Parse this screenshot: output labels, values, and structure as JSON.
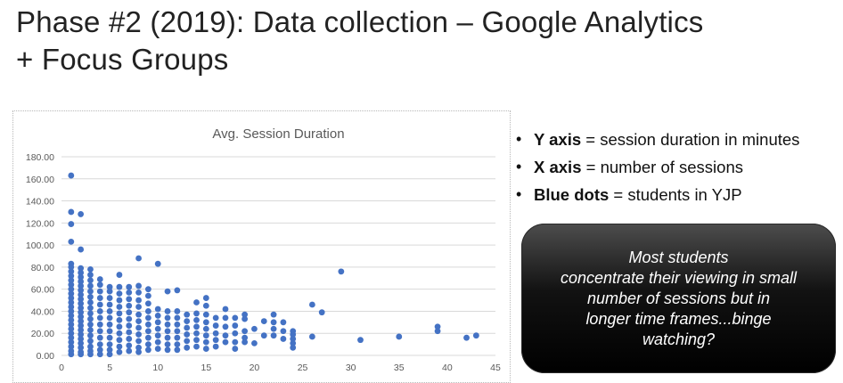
{
  "slide": {
    "title_line1": "Phase #2 (2019): Data collection – Google Analytics",
    "title_line2": "+ Focus Groups"
  },
  "bullets": [
    {
      "bold": "Y axis",
      "text": " = session duration in minutes"
    },
    {
      "bold": "X axis",
      "text": " = number of sessions"
    },
    {
      "bold": "Blue dots",
      "text": " = students in YJP"
    }
  ],
  "callout": {
    "text": "Most students\nconcentrate their viewing in small\nnumber of sessions but in\nlonger time frames...binge\nwatching?"
  },
  "colors": {
    "dot": "#4472C4",
    "grid": "#d9d9d9",
    "axis_text": "#595959",
    "title_text": "#595959"
  },
  "chart_data": {
    "type": "scatter",
    "title": "Avg. Session Duration",
    "xlabel": "",
    "ylabel": "",
    "xlim": [
      0,
      45
    ],
    "ylim": [
      0,
      180
    ],
    "x_ticks": [
      0,
      5,
      10,
      15,
      20,
      25,
      30,
      35,
      40,
      45
    ],
    "y_ticks": [
      0,
      20,
      40,
      60,
      80,
      100,
      120,
      140,
      160,
      180
    ],
    "y_tick_labels": [
      "0.00",
      "20.00",
      "40.00",
      "60.00",
      "80.00",
      "100.00",
      "120.00",
      "140.00",
      "160.00",
      "180.00"
    ],
    "x_tick_labels": [
      "0",
      "5",
      "10",
      "15",
      "20",
      "25",
      "30",
      "35",
      "40",
      "45"
    ],
    "grid": "horizontal",
    "legend": "none",
    "series": [
      {
        "name": "Students in YJP",
        "points": [
          [
            1,
            163
          ],
          [
            1,
            130
          ],
          [
            1,
            119
          ],
          [
            1,
            103
          ],
          [
            1,
            83
          ],
          [
            1,
            80
          ],
          [
            1,
            76
          ],
          [
            1,
            72
          ],
          [
            1,
            68
          ],
          [
            1,
            64
          ],
          [
            1,
            60
          ],
          [
            1,
            56
          ],
          [
            1,
            52
          ],
          [
            1,
            48
          ],
          [
            1,
            44
          ],
          [
            1,
            40
          ],
          [
            1,
            36
          ],
          [
            1,
            32
          ],
          [
            1,
            28
          ],
          [
            1,
            24
          ],
          [
            1,
            20
          ],
          [
            1,
            16
          ],
          [
            1,
            12
          ],
          [
            1,
            8
          ],
          [
            1,
            4
          ],
          [
            1,
            1
          ],
          [
            2,
            128
          ],
          [
            2,
            96
          ],
          [
            2,
            79
          ],
          [
            2,
            75
          ],
          [
            2,
            71
          ],
          [
            2,
            67
          ],
          [
            2,
            63
          ],
          [
            2,
            59
          ],
          [
            2,
            55
          ],
          [
            2,
            51
          ],
          [
            2,
            47
          ],
          [
            2,
            43
          ],
          [
            2,
            39
          ],
          [
            2,
            35
          ],
          [
            2,
            31
          ],
          [
            2,
            27
          ],
          [
            2,
            23
          ],
          [
            2,
            19
          ],
          [
            2,
            15
          ],
          [
            2,
            11
          ],
          [
            2,
            7
          ],
          [
            2,
            3
          ],
          [
            2,
            1
          ],
          [
            3,
            78
          ],
          [
            3,
            73
          ],
          [
            3,
            68
          ],
          [
            3,
            63
          ],
          [
            3,
            58
          ],
          [
            3,
            53
          ],
          [
            3,
            48
          ],
          [
            3,
            43
          ],
          [
            3,
            38
          ],
          [
            3,
            33
          ],
          [
            3,
            28
          ],
          [
            3,
            23
          ],
          [
            3,
            18
          ],
          [
            3,
            13
          ],
          [
            3,
            8
          ],
          [
            3,
            4
          ],
          [
            3,
            1
          ],
          [
            4,
            69
          ],
          [
            4,
            64
          ],
          [
            4,
            58
          ],
          [
            4,
            52
          ],
          [
            4,
            46
          ],
          [
            4,
            40
          ],
          [
            4,
            34
          ],
          [
            4,
            28
          ],
          [
            4,
            22
          ],
          [
            4,
            16
          ],
          [
            4,
            10
          ],
          [
            4,
            5
          ],
          [
            4,
            1
          ],
          [
            5,
            62
          ],
          [
            5,
            58
          ],
          [
            5,
            52
          ],
          [
            5,
            46
          ],
          [
            5,
            40
          ],
          [
            5,
            34
          ],
          [
            5,
            28
          ],
          [
            5,
            22
          ],
          [
            5,
            16
          ],
          [
            5,
            10
          ],
          [
            5,
            5
          ],
          [
            5,
            1
          ],
          [
            6,
            73
          ],
          [
            6,
            62
          ],
          [
            6,
            56
          ],
          [
            6,
            50
          ],
          [
            6,
            44
          ],
          [
            6,
            38
          ],
          [
            6,
            32
          ],
          [
            6,
            26
          ],
          [
            6,
            20
          ],
          [
            6,
            14
          ],
          [
            6,
            8
          ],
          [
            6,
            3
          ],
          [
            7,
            62
          ],
          [
            7,
            57
          ],
          [
            7,
            51
          ],
          [
            7,
            45
          ],
          [
            7,
            39
          ],
          [
            7,
            33
          ],
          [
            7,
            27
          ],
          [
            7,
            21
          ],
          [
            7,
            15
          ],
          [
            7,
            9
          ],
          [
            7,
            4
          ],
          [
            8,
            88
          ],
          [
            8,
            63
          ],
          [
            8,
            57
          ],
          [
            8,
            50
          ],
          [
            8,
            44
          ],
          [
            8,
            37
          ],
          [
            8,
            31
          ],
          [
            8,
            25
          ],
          [
            8,
            19
          ],
          [
            8,
            13
          ],
          [
            8,
            7
          ],
          [
            8,
            3
          ],
          [
            9,
            60
          ],
          [
            9,
            54
          ],
          [
            9,
            47
          ],
          [
            9,
            40
          ],
          [
            9,
            34
          ],
          [
            9,
            28
          ],
          [
            9,
            22
          ],
          [
            9,
            16
          ],
          [
            9,
            10
          ],
          [
            9,
            5
          ],
          [
            10,
            83
          ],
          [
            10,
            42
          ],
          [
            10,
            36
          ],
          [
            10,
            30
          ],
          [
            10,
            24
          ],
          [
            10,
            18
          ],
          [
            10,
            12
          ],
          [
            10,
            6
          ],
          [
            11,
            58
          ],
          [
            11,
            40
          ],
          [
            11,
            34
          ],
          [
            11,
            28
          ],
          [
            11,
            22
          ],
          [
            11,
            16
          ],
          [
            11,
            10
          ],
          [
            11,
            5
          ],
          [
            12,
            59
          ],
          [
            12,
            40
          ],
          [
            12,
            34
          ],
          [
            12,
            28
          ],
          [
            12,
            22
          ],
          [
            12,
            16
          ],
          [
            12,
            10
          ],
          [
            12,
            5
          ],
          [
            13,
            37
          ],
          [
            13,
            31
          ],
          [
            13,
            25
          ],
          [
            13,
            19
          ],
          [
            13,
            13
          ],
          [
            13,
            7
          ],
          [
            14,
            48
          ],
          [
            14,
            38
          ],
          [
            14,
            32
          ],
          [
            14,
            26
          ],
          [
            14,
            20
          ],
          [
            14,
            14
          ],
          [
            14,
            8
          ],
          [
            15,
            52
          ],
          [
            15,
            45
          ],
          [
            15,
            37
          ],
          [
            15,
            30
          ],
          [
            15,
            24
          ],
          [
            15,
            18
          ],
          [
            15,
            12
          ],
          [
            15,
            6
          ],
          [
            16,
            34
          ],
          [
            16,
            27
          ],
          [
            16,
            20
          ],
          [
            16,
            14
          ],
          [
            16,
            8
          ],
          [
            17,
            42
          ],
          [
            17,
            34
          ],
          [
            17,
            26
          ],
          [
            17,
            18
          ],
          [
            17,
            12
          ],
          [
            18,
            34
          ],
          [
            18,
            27
          ],
          [
            18,
            20
          ],
          [
            18,
            12
          ],
          [
            18,
            6
          ],
          [
            19,
            37
          ],
          [
            19,
            33
          ],
          [
            19,
            22
          ],
          [
            19,
            16
          ],
          [
            19,
            12
          ],
          [
            20,
            24
          ],
          [
            20,
            11
          ],
          [
            21,
            31
          ],
          [
            21,
            18
          ],
          [
            22,
            37
          ],
          [
            22,
            30
          ],
          [
            22,
            24
          ],
          [
            22,
            18
          ],
          [
            23,
            30
          ],
          [
            23,
            22
          ],
          [
            23,
            15
          ],
          [
            24,
            22
          ],
          [
            24,
            19
          ],
          [
            24,
            15
          ],
          [
            24,
            11
          ],
          [
            24,
            7
          ],
          [
            26,
            46
          ],
          [
            26,
            17
          ],
          [
            27,
            39
          ],
          [
            29,
            76
          ],
          [
            31,
            14
          ],
          [
            35,
            17
          ],
          [
            39,
            26
          ],
          [
            39,
            22
          ],
          [
            42,
            16
          ],
          [
            43,
            18
          ]
        ]
      }
    ]
  }
}
